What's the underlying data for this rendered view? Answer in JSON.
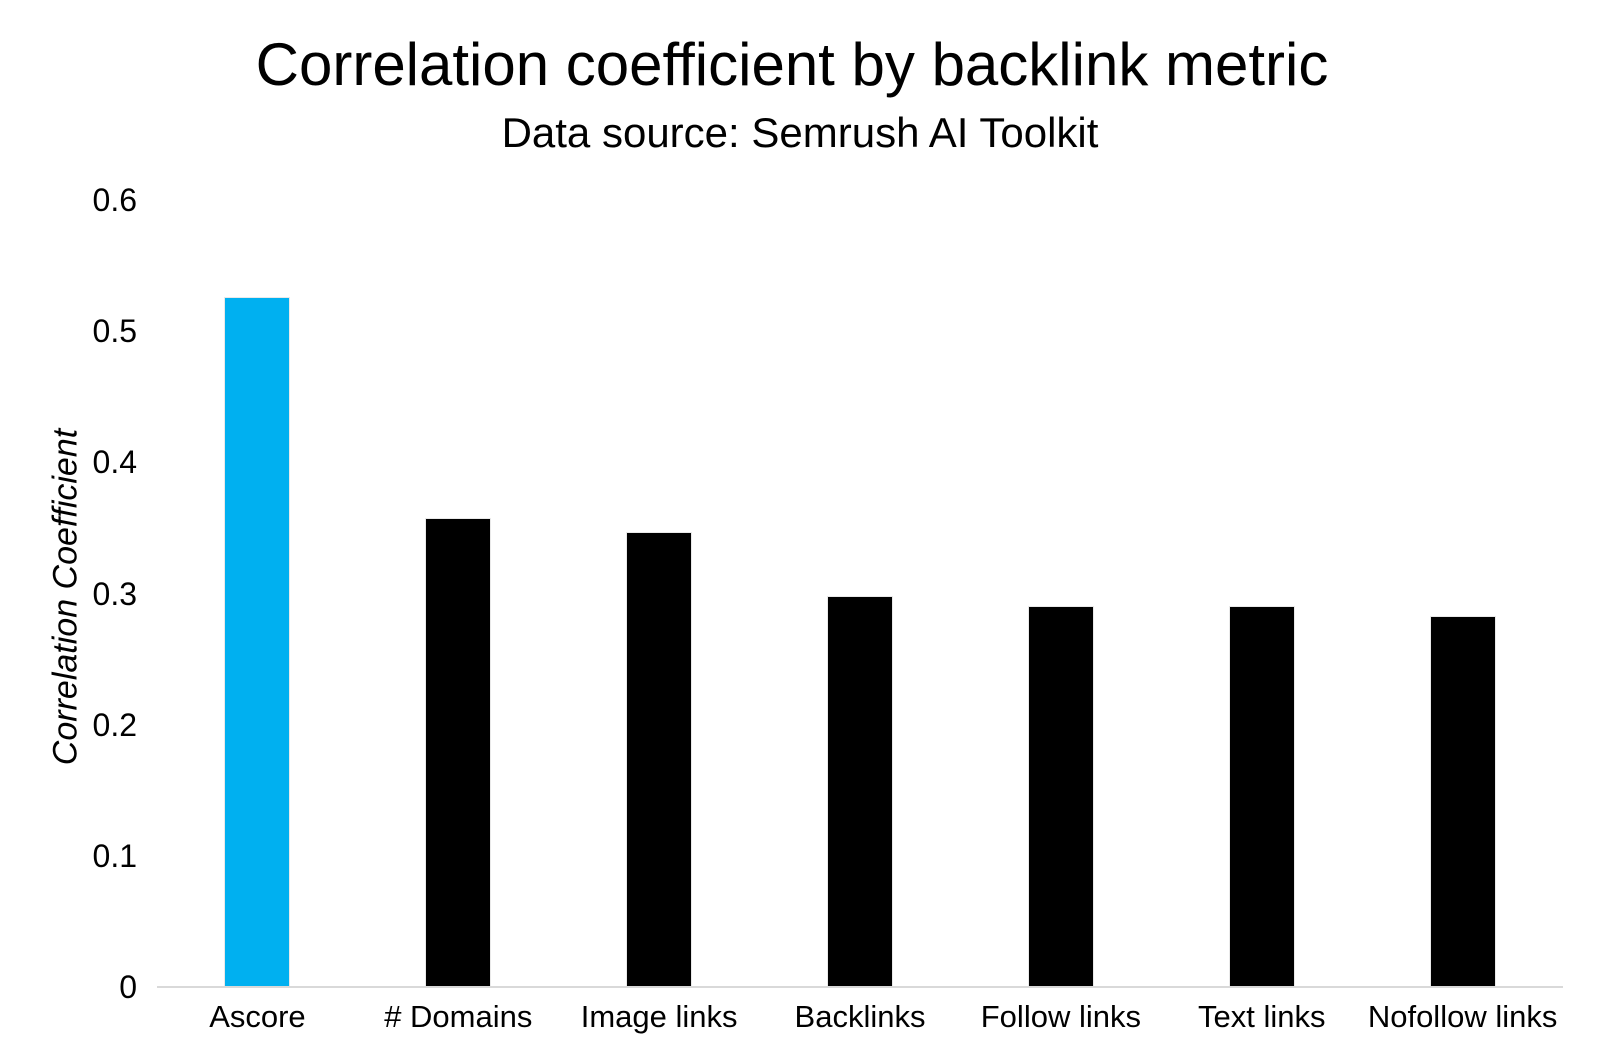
{
  "header": {
    "title": "Correlation coefficient by backlink metric",
    "subtitle": "Data source: Semrush AI Toolkit"
  },
  "y_axis": {
    "label": "Correlation Coefficient"
  },
  "chart_data": {
    "type": "bar",
    "title": "Correlation coefficient by backlink metric",
    "subtitle": "Data source: Semrush AI Toolkit",
    "categories": [
      "Ascore",
      "# Domains",
      "Image links",
      "Backlinks",
      "Follow links",
      "Text links",
      "Nofollow links"
    ],
    "values": [
      0.525,
      0.357,
      0.346,
      0.297,
      0.29,
      0.29,
      0.282
    ],
    "bar_colors": [
      "#00B0F0",
      "#000000",
      "#000000",
      "#000000",
      "#000000",
      "#000000",
      "#000000"
    ],
    "highlight_category": "Ascore",
    "accent_color": "#00B0F0",
    "default_bar_color": "#000000",
    "xlabel": "",
    "ylabel": "Correlation Coefficient",
    "ylim": [
      0,
      0.6
    ],
    "yticks": [
      0,
      0.1,
      0.2,
      0.3,
      0.4,
      0.5,
      0.6
    ],
    "ytick_labels": [
      "0",
      "0.1",
      "0.2",
      "0.3",
      "0.4",
      "0.5",
      "0.6"
    ],
    "grid": false,
    "legend": false,
    "axis_line_color": "#d9d9d9",
    "background_color": "#ffffff"
  }
}
